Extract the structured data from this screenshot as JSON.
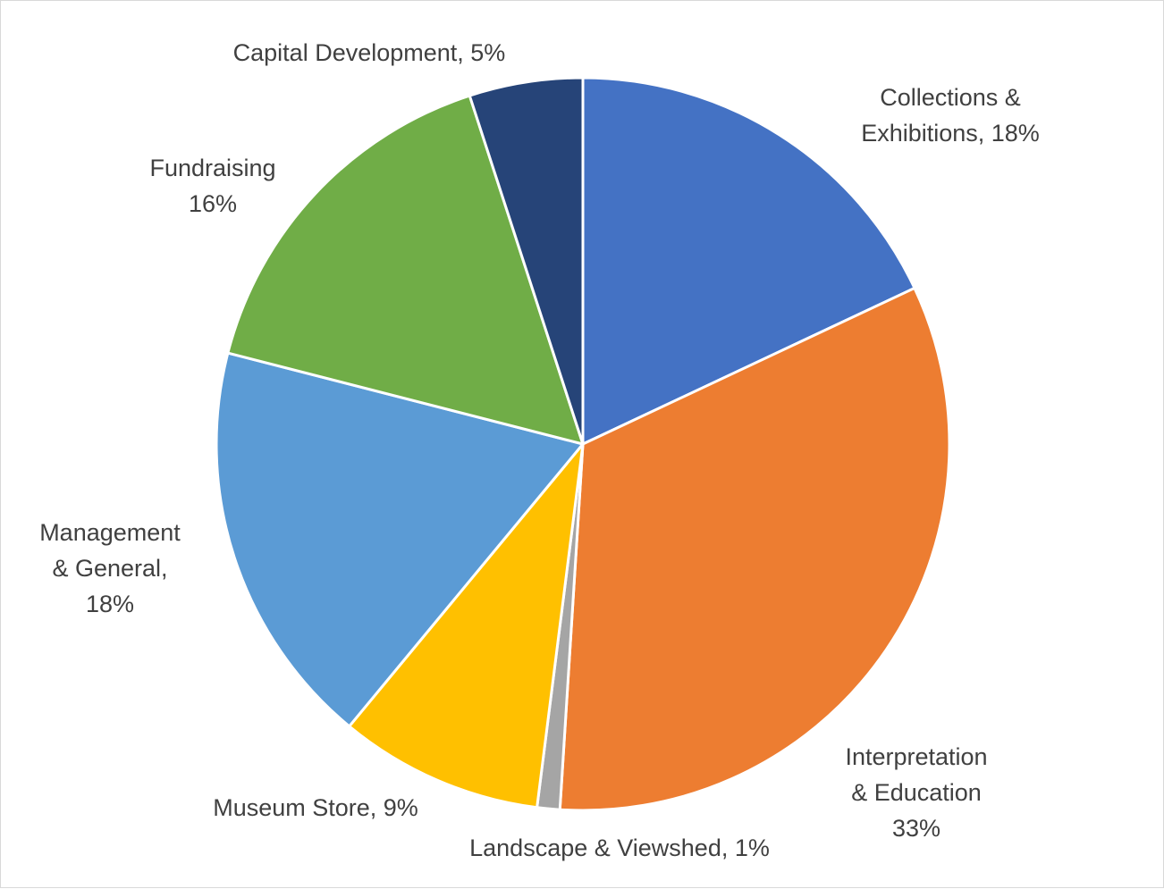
{
  "chart_data": {
    "type": "pie",
    "title": "",
    "start_angle_deg": 0,
    "direction": "clockwise",
    "legend": "none",
    "slices": [
      {
        "name": "Collections & Exhibitions",
        "value": 18,
        "color": "#4472C4",
        "label_lines": [
          "Collections &",
          "Exhibitions, 18%"
        ]
      },
      {
        "name": "Interpretation & Education",
        "value": 33,
        "color": "#ED7D31",
        "label_lines": [
          "Interpretation",
          "& Education",
          "33%"
        ]
      },
      {
        "name": "Landscape & Viewshed",
        "value": 1,
        "color": "#A5A5A5",
        "label_lines": [
          "Landscape & Viewshed, 1%"
        ]
      },
      {
        "name": "Museum Store",
        "value": 9,
        "color": "#FFC000",
        "label_lines": [
          "Museum Store, 9%"
        ]
      },
      {
        "name": "Management & General",
        "value": 18,
        "color": "#5B9BD5",
        "label_lines": [
          "Management",
          "& General,",
          "18%"
        ]
      },
      {
        "name": "Fundraising",
        "value": 16,
        "color": "#70AD47",
        "label_lines": [
          "Fundraising",
          "16%"
        ]
      },
      {
        "name": "Capital Development",
        "value": 5,
        "color": "#264478",
        "label_lines": [
          "Capital Development, 5%"
        ]
      }
    ]
  }
}
